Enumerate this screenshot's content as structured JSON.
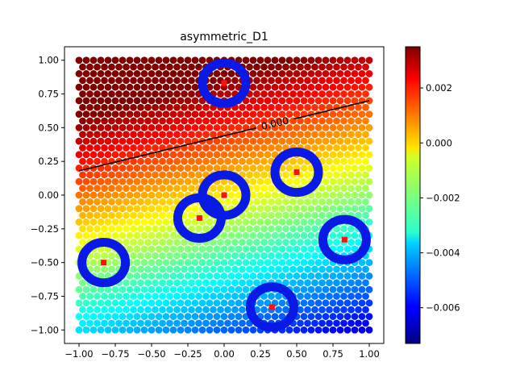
{
  "chart_data": {
    "type": "heatmap",
    "title": "asymmetric_D1",
    "xlabel": "",
    "ylabel": "",
    "xlim": [
      -1.1,
      1.1
    ],
    "ylim": [
      -1.1,
      1.1
    ],
    "x_ticks": [
      "-1.00",
      "-0.75",
      "-0.50",
      "-0.25",
      "0.00",
      "0.25",
      "0.50",
      "0.75",
      "1.00"
    ],
    "y_ticks": [
      "-1.00",
      "-0.75",
      "-0.50",
      "-0.25",
      "0.00",
      "0.25",
      "0.50",
      "0.75",
      "1.00"
    ],
    "colormap": "jet",
    "colorbar": {
      "vmin": -0.0073,
      "vmax": 0.0035,
      "ticks": [
        0.002,
        0.0,
        -0.002,
        -0.004,
        -0.006
      ],
      "tick_labels": [
        "0.002",
        "0.000",
        "−0.002",
        "−0.004",
        "−0.006"
      ]
    },
    "field": {
      "grid_extent": [
        -1.0,
        1.0
      ],
      "grid_step": 0.05,
      "value_at_origin": -0.0004,
      "gradient_x": -0.00135,
      "gradient_y": 0.0045
    },
    "contour": {
      "label": "0.000",
      "line": [
        [
          -1.0,
          0.18
        ],
        [
          1.0,
          0.7
        ]
      ]
    },
    "sources": [
      {
        "x": 0.0,
        "y": 0.83
      },
      {
        "x": 0.5,
        "y": 0.17
      },
      {
        "x": 0.0,
        "y": 0.0
      },
      {
        "x": -0.17,
        "y": -0.17
      },
      {
        "x": 0.83,
        "y": -0.33
      },
      {
        "x": -0.83,
        "y": -0.5
      },
      {
        "x": 0.33,
        "y": -0.83
      }
    ],
    "ring_radius": 0.15,
    "colors": {
      "ring": "#0a1ae6",
      "source": "#ff1010",
      "contour": "#000000"
    }
  }
}
